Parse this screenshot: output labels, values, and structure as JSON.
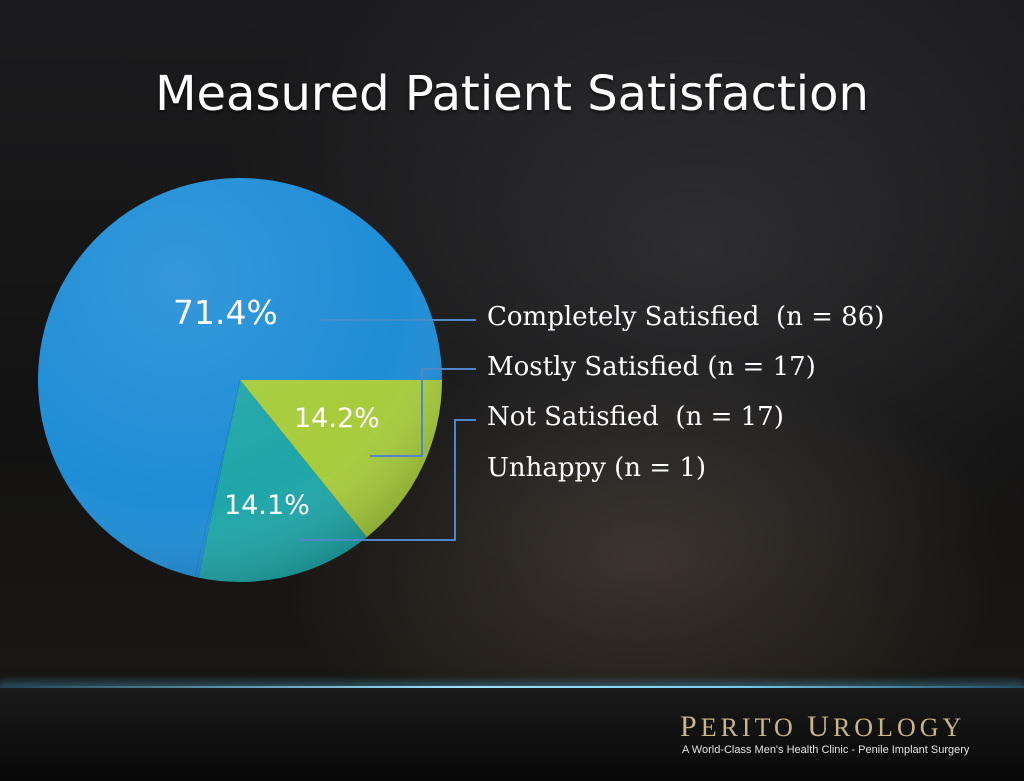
{
  "slide": {
    "title": "Measured Patient Satisfaction"
  },
  "chart_data": {
    "type": "pie",
    "title": "Measured Patient Satisfaction",
    "slices": [
      {
        "label": "Completely Satisfied  (n = 86)",
        "value": 71.4,
        "display": "71.4%",
        "color": "#1e8dd6"
      },
      {
        "label": "Mostly Satisfied (n = 17)",
        "value": 14.2,
        "display": "14.2%",
        "color": "#a7cc3c"
      },
      {
        "label": "Not Satisfied  (n = 17)",
        "value": 14.1,
        "display": "14.1%",
        "color": "#1fa6a8"
      },
      {
        "label": "Unhappy (n = 1)",
        "value": 0.3,
        "display": "",
        "color": "#1e8dd6"
      }
    ],
    "legend": "right"
  },
  "branding": {
    "logo_text": "Perito Urology",
    "tagline": "A World-Class Men's Health Clinic - Penile Implant Surgery",
    "logo_color": "#c9b58a"
  }
}
